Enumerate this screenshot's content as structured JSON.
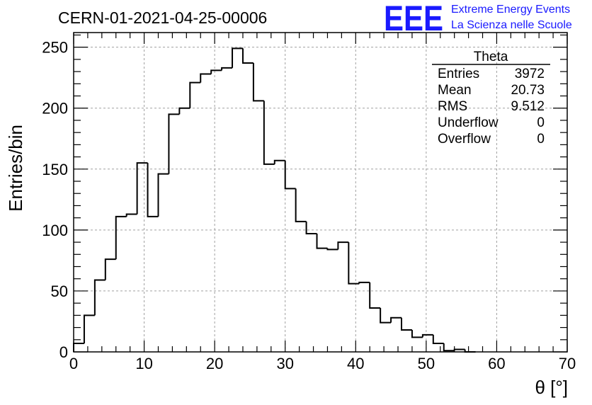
{
  "header": {
    "title": "CERN-01-2021-04-25-00006",
    "logo_text": "EEE",
    "logo_line1": "Extreme Energy Events",
    "logo_line2": "La Scienza nelle Scuole"
  },
  "colors": {
    "logo": "#1a1aff",
    "histogram": "#000000",
    "grid": "#a0a0a0"
  },
  "stats": {
    "title": "Theta",
    "rows": [
      {
        "label": "Entries",
        "value": "3972"
      },
      {
        "label": "Mean",
        "value": "20.73"
      },
      {
        "label": "RMS",
        "value": "9.512"
      },
      {
        "label": "Underflow",
        "value": "0"
      },
      {
        "label": "Overflow",
        "value": "0"
      }
    ]
  },
  "chart_data": {
    "type": "bar",
    "style": "step-histogram",
    "title": "CERN-01-2021-04-25-00006",
    "xlabel": "θ [°]",
    "ylabel": "Entries/bin",
    "xlim": [
      0,
      70
    ],
    "ylim": [
      0,
      262
    ],
    "bin_width": 1.5,
    "bin_start": 0,
    "xticks": [
      "0",
      "10",
      "20",
      "30",
      "40",
      "50",
      "60",
      "70"
    ],
    "yticks": [
      "0",
      "50",
      "100",
      "150",
      "200",
      "250"
    ],
    "grid": true,
    "values": [
      7,
      30,
      59,
      76,
      111,
      113,
      155,
      111,
      146,
      195,
      200,
      221,
      228,
      231,
      233,
      249,
      237,
      206,
      154,
      157,
      134,
      107,
      97,
      85,
      84,
      90,
      56,
      57,
      36,
      24,
      28,
      18,
      12,
      14,
      7,
      1,
      2,
      0,
      0,
      0,
      0,
      0,
      0,
      0,
      0,
      0,
      0
    ]
  }
}
